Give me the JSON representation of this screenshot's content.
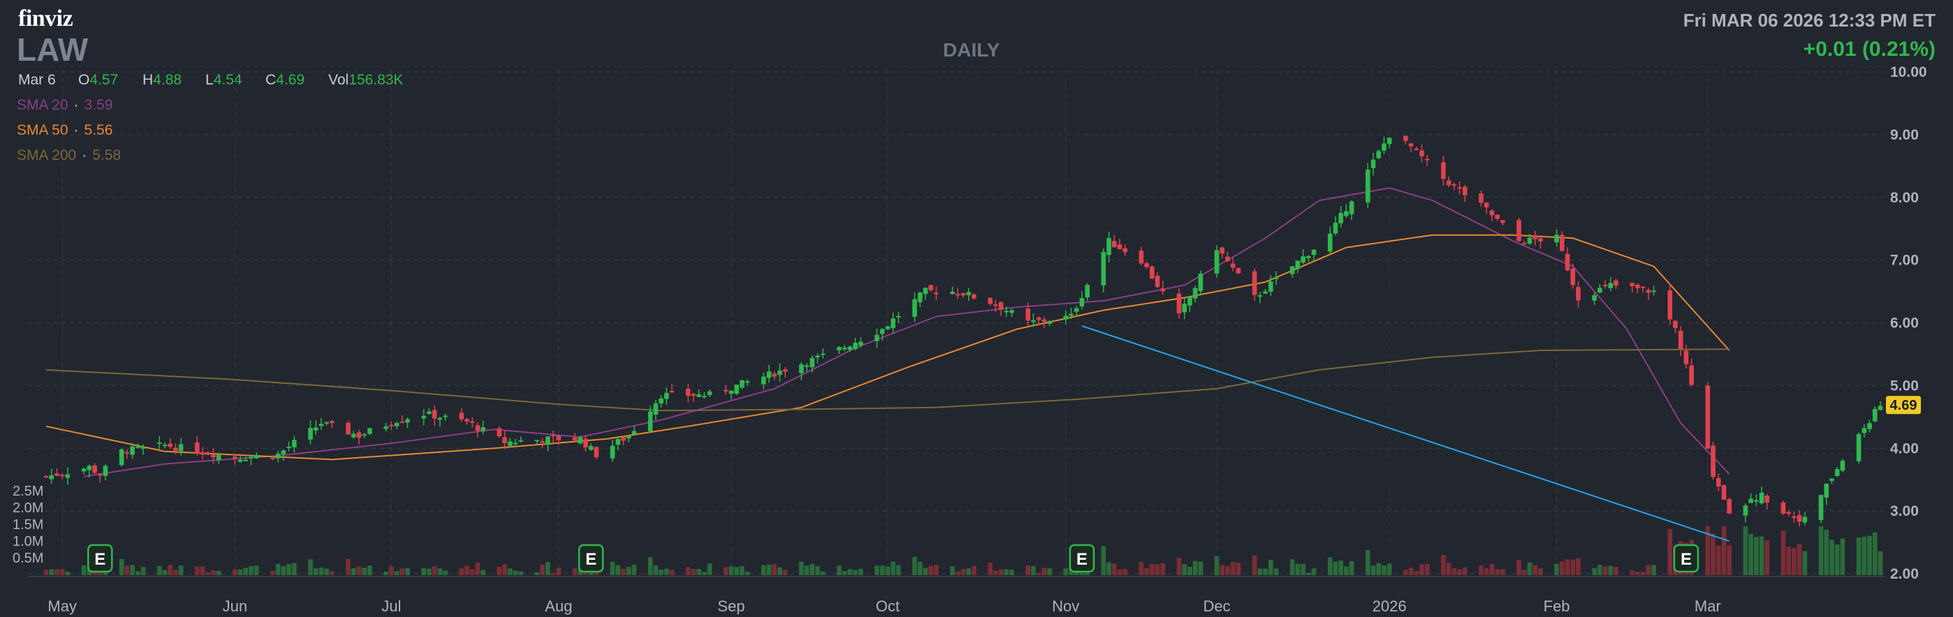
{
  "header": {
    "logo": "finviz",
    "ticker": "LAW",
    "timeframe": "DAILY",
    "datetime": "Fri MAR 06 2026 12:33 PM ET",
    "change": "+0.01 (0.21%)"
  },
  "ohlc": {
    "date": "Mar 6",
    "open_label": "O",
    "open": "4.57",
    "high_label": "H",
    "high": "4.88",
    "low_label": "L",
    "low": "4.54",
    "close_label": "C",
    "close": "4.69",
    "vol_label": "Vol",
    "vol": "156.83K"
  },
  "sma": [
    {
      "label": "SMA 20",
      "dot": "·",
      "value": "3.59",
      "color": "#8a3f86"
    },
    {
      "label": "SMA 50",
      "dot": "·",
      "value": "5.56",
      "color": "#e8892f"
    },
    {
      "label": "SMA 200",
      "dot": "·",
      "value": "5.58",
      "color": "#7a6a3a"
    }
  ],
  "colors": {
    "up": "#2fb84f",
    "down": "#e0424f",
    "trendline": "#1ea7e6",
    "last_price_badge": "#f0c929"
  },
  "chart_data": {
    "type": "candlestick",
    "ylim": [
      2,
      10
    ],
    "y_ticks": [
      "2.00",
      "3.00",
      "4.00",
      "5.00",
      "6.00",
      "7.00",
      "8.00",
      "9.00",
      "10.00"
    ],
    "x_ticks": [
      {
        "label": "May",
        "date": "2025-05-01"
      },
      {
        "label": "Jun",
        "date": "2025-06-02"
      },
      {
        "label": "Jul",
        "date": "2025-07-01"
      },
      {
        "label": "Aug",
        "date": "2025-08-01"
      },
      {
        "label": "Sep",
        "date": "2025-09-02"
      },
      {
        "label": "Oct",
        "date": "2025-10-01"
      },
      {
        "label": "Nov",
        "date": "2025-11-03"
      },
      {
        "label": "Dec",
        "date": "2025-12-01"
      },
      {
        "label": "2026",
        "date": "2026-01-02"
      },
      {
        "label": "Feb",
        "date": "2026-02-02"
      },
      {
        "label": "Mar",
        "date": "2026-03-02"
      }
    ],
    "volume_ticks": [
      "2.5M",
      "2.0M",
      "1.5M",
      "1.0M",
      "0.5M"
    ],
    "last_price": "4.69",
    "earnings_label": "E",
    "earnings_dates": [
      "2025-05-08",
      "2025-08-07",
      "2025-11-06",
      "2026-02-26"
    ],
    "trendline": {
      "start": {
        "date": "2025-11-06",
        "value": 5.95
      },
      "end": {
        "date": "2026-03-06",
        "value": 2.52
      }
    },
    "sma_points": {
      "sma20": [
        [
          "2025-05-05",
          3.55
        ],
        [
          "2025-05-20",
          3.75
        ],
        [
          "2025-06-10",
          3.88
        ],
        [
          "2025-07-01",
          4.08
        ],
        [
          "2025-07-20",
          4.3
        ],
        [
          "2025-08-05",
          4.18
        ],
        [
          "2025-08-20",
          4.45
        ],
        [
          "2025-09-10",
          4.95
        ],
        [
          "2025-09-25",
          5.6
        ],
        [
          "2025-10-10",
          6.1
        ],
        [
          "2025-10-25",
          6.25
        ],
        [
          "2025-11-10",
          6.35
        ],
        [
          "2025-11-25",
          6.6
        ],
        [
          "2025-12-10",
          7.35
        ],
        [
          "2025-12-20",
          7.95
        ],
        [
          "2026-01-02",
          8.15
        ],
        [
          "2026-01-10",
          7.95
        ],
        [
          "2026-01-25",
          7.3
        ],
        [
          "2026-02-05",
          6.9
        ],
        [
          "2026-02-15",
          5.9
        ],
        [
          "2026-02-25",
          4.4
        ],
        [
          "2026-03-06",
          3.59
        ]
      ],
      "sma50": [
        [
          "2025-04-28",
          4.35
        ],
        [
          "2025-05-20",
          3.95
        ],
        [
          "2025-06-20",
          3.82
        ],
        [
          "2025-07-20",
          4.0
        ],
        [
          "2025-08-10",
          4.15
        ],
        [
          "2025-08-25",
          4.35
        ],
        [
          "2025-09-15",
          4.65
        ],
        [
          "2025-10-05",
          5.3
        ],
        [
          "2025-10-25",
          5.9
        ],
        [
          "2025-11-10",
          6.2
        ],
        [
          "2025-11-25",
          6.4
        ],
        [
          "2025-12-10",
          6.65
        ],
        [
          "2025-12-25",
          7.2
        ],
        [
          "2026-01-10",
          7.4
        ],
        [
          "2026-01-25",
          7.4
        ],
        [
          "2026-02-05",
          7.35
        ],
        [
          "2026-02-20",
          6.9
        ],
        [
          "2026-03-06",
          5.56
        ]
      ],
      "sma200": [
        [
          "2025-04-28",
          5.25
        ],
        [
          "2025-06-01",
          5.1
        ],
        [
          "2025-07-01",
          4.92
        ],
        [
          "2025-08-01",
          4.7
        ],
        [
          "2025-08-20",
          4.6
        ],
        [
          "2025-09-15",
          4.62
        ],
        [
          "2025-10-10",
          4.65
        ],
        [
          "2025-11-05",
          4.78
        ],
        [
          "2025-12-01",
          4.95
        ],
        [
          "2025-12-20",
          5.25
        ],
        [
          "2026-01-10",
          5.45
        ],
        [
          "2026-01-30",
          5.56
        ],
        [
          "2026-03-06",
          5.58
        ]
      ]
    },
    "anchors": [
      [
        "2025-04-28",
        3.55
      ],
      [
        "2025-05-06",
        3.7
      ],
      [
        "2025-05-08",
        3.58
      ],
      [
        "2025-05-12",
        3.95
      ],
      [
        "2025-05-20",
        4.05
      ],
      [
        "2025-06-02",
        3.85
      ],
      [
        "2025-06-10",
        3.9
      ],
      [
        "2025-06-18",
        4.4
      ],
      [
        "2025-06-25",
        4.2
      ],
      [
        "2025-07-02",
        4.45
      ],
      [
        "2025-07-07",
        4.55
      ],
      [
        "2025-07-15",
        4.42
      ],
      [
        "2025-07-22",
        4.1
      ],
      [
        "2025-07-31",
        4.15
      ],
      [
        "2025-08-05",
        4.15
      ],
      [
        "2025-08-08",
        3.9
      ],
      [
        "2025-08-14",
        4.2
      ],
      [
        "2025-08-20",
        4.85
      ],
      [
        "2025-08-29",
        4.85
      ],
      [
        "2025-09-10",
        5.2
      ],
      [
        "2025-09-20",
        5.5
      ],
      [
        "2025-09-30",
        5.9
      ],
      [
        "2025-10-08",
        6.5
      ],
      [
        "2025-10-14",
        6.5
      ],
      [
        "2025-10-21",
        6.3
      ],
      [
        "2025-10-27",
        6.0
      ],
      [
        "2025-11-04",
        6.1
      ],
      [
        "2025-11-11",
        7.3
      ],
      [
        "2025-11-17",
        7.0
      ],
      [
        "2025-11-20",
        6.6
      ],
      [
        "2025-11-24",
        6.1
      ],
      [
        "2025-12-01",
        7.2
      ],
      [
        "2025-12-08",
        6.4
      ],
      [
        "2025-12-15",
        6.9
      ],
      [
        "2025-12-22",
        7.4
      ],
      [
        "2026-01-02",
        9.0
      ],
      [
        "2026-01-06",
        8.8
      ],
      [
        "2026-01-12",
        8.3
      ],
      [
        "2026-01-20",
        7.8
      ],
      [
        "2026-01-26",
        7.3
      ],
      [
        "2026-02-02",
        7.35
      ],
      [
        "2026-02-06",
        6.4
      ],
      [
        "2026-02-12",
        6.6
      ],
      [
        "2026-02-20",
        6.5
      ],
      [
        "2026-02-24",
        5.9
      ],
      [
        "2026-02-27",
        5.0
      ],
      [
        "2026-03-03",
        3.6
      ],
      [
        "2026-03-06",
        3.0
      ],
      [
        "2026-03-12",
        3.25
      ],
      [
        "2026-03-16",
        3.0
      ],
      [
        "2026-03-20",
        2.85
      ],
      [
        "2026-03-24",
        3.4
      ],
      [
        "2026-03-30",
        4.2
      ],
      [
        "2026-04-03",
        4.69
      ]
    ]
  }
}
